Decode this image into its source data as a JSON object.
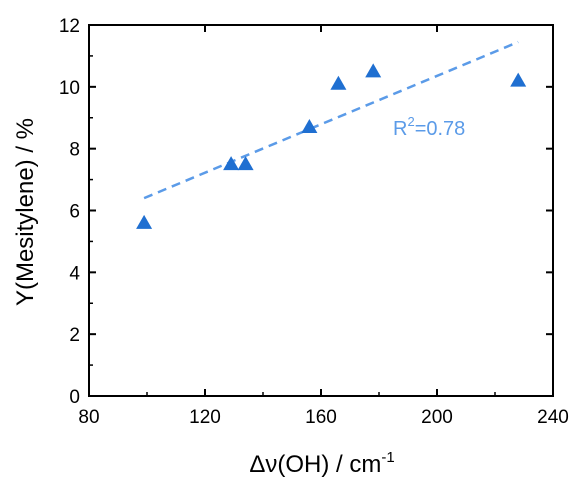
{
  "chart_data": {
    "type": "scatter",
    "xlabel": "Δν(OH) / cm⁻¹",
    "xlabel_base": "Δν(OH) / cm",
    "xlabel_sup": "-1",
    "ylabel": "Y(Mesitylene) / %",
    "xlim": [
      80,
      240
    ],
    "ylim": [
      0,
      12
    ],
    "x_ticks": [
      80,
      120,
      160,
      200,
      240
    ],
    "y_ticks": [
      0,
      2,
      4,
      6,
      8,
      10,
      12
    ],
    "grid": false,
    "series": [
      {
        "marker": "triangle",
        "color": "#1f6fd1",
        "points": [
          {
            "x": 99,
            "y": 5.6
          },
          {
            "x": 129,
            "y": 7.5
          },
          {
            "x": 134,
            "y": 7.5
          },
          {
            "x": 156,
            "y": 8.7
          },
          {
            "x": 166,
            "y": 10.1
          },
          {
            "x": 178,
            "y": 10.5
          },
          {
            "x": 228,
            "y": 10.2
          }
        ]
      }
    ],
    "fit_line": {
      "style": "dashed",
      "color": "#5b9be8",
      "x": [
        99,
        228
      ],
      "y": [
        6.4,
        11.45
      ]
    },
    "annotation": {
      "text": "R²=0.78",
      "base": "R",
      "sup": "2",
      "rest": "=0.78",
      "color": "#5b9be8"
    }
  }
}
